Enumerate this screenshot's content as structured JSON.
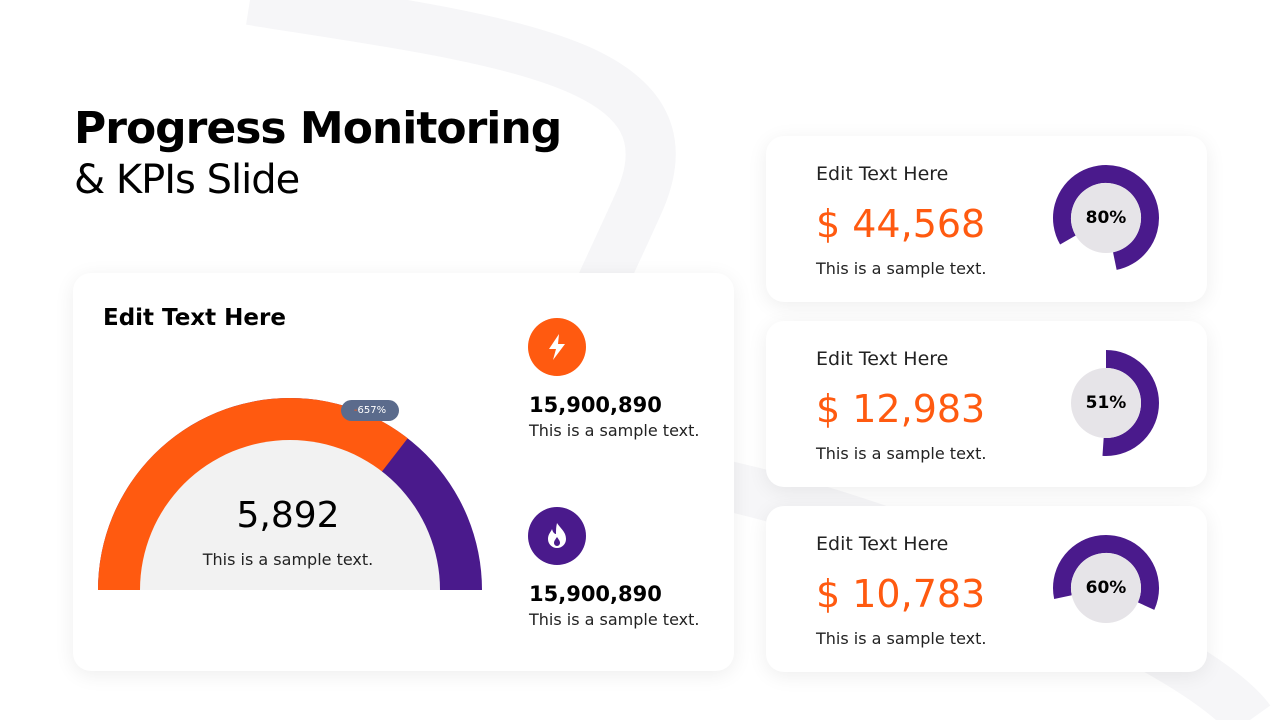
{
  "title": {
    "bold": "Progress Monitoring",
    "light": "& KPIs Slide"
  },
  "main_card": {
    "heading": "Edit Text Here",
    "gauge_value": "5,892",
    "gauge_text": "This is a sample text.",
    "badge": "657%",
    "badge_sign": "-",
    "gauge_fraction": 0.71,
    "stats": [
      {
        "icon": "lightning-icon",
        "color": "#ff5a10",
        "value": "15,900,890",
        "text": "This is a sample text."
      },
      {
        "icon": "flame-icon",
        "color": "#4a1a8c",
        "value": "15,900,890",
        "text": "This is a sample text."
      }
    ]
  },
  "kpis": [
    {
      "heading": "Edit Text Here",
      "value": "$ 44,568",
      "text": "This is a sample text.",
      "percent": "80%",
      "fraction": 0.8
    },
    {
      "heading": "Edit Text Here",
      "value": "$ 12,983",
      "text": "This is a sample text.",
      "percent": "51%",
      "fraction": 0.51
    },
    {
      "heading": "Edit Text Here",
      "value": "$ 10,783",
      "text": "This is a sample text.",
      "percent": "60%",
      "fraction": 0.6
    }
  ],
  "colors": {
    "orange": "#ff5a10",
    "purple": "#4a1a8c",
    "gray": "#f2f2f2"
  }
}
